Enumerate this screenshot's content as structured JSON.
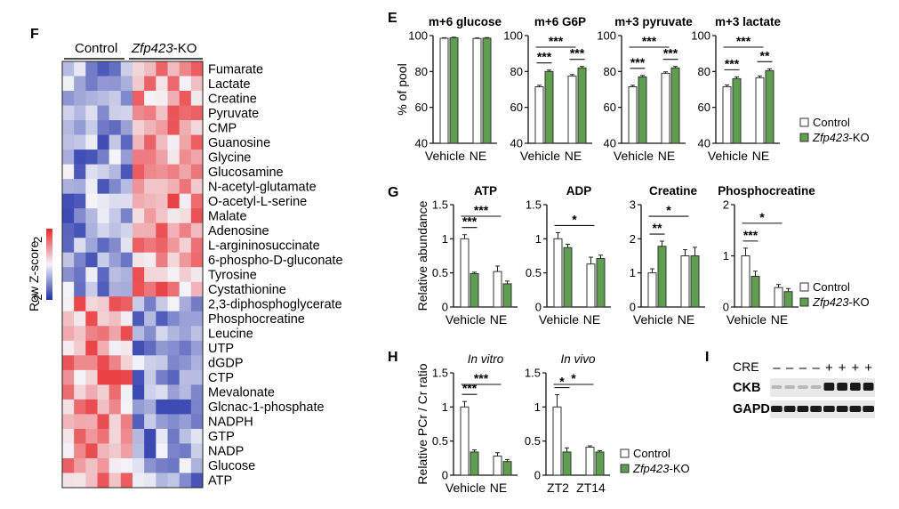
{
  "figure": {
    "panel_letters": {
      "F": "F",
      "E": "E",
      "G": "G",
      "H": "H",
      "I": "I"
    },
    "heatmap": {
      "group_labels": {
        "control": "Control",
        "ko_italic": "Zfp423",
        "ko_suffix": "-KO"
      },
      "colorbar": {
        "label": "Row Z-score",
        "max_label": "2",
        "min_label": "-2"
      },
      "rows": [
        "Fumarate",
        "Lactate",
        "Creatine",
        "Pyruvate",
        "CMP",
        "Guanosine",
        "Glycine",
        "Glucosamine",
        "N-acetyl-glutamate",
        "O-acetyl-L-serine",
        "Malate",
        "Adenosine",
        "L-argininosuccinate",
        "6-phospho-D-gluconate",
        "Tyrosine",
        "Cystathionine",
        "2,3-diphosphoglycerate",
        "Phosphocreatine",
        "Leucine",
        "UTP",
        "dGDP",
        "CTP",
        "Mevalonate",
        "Glcnac-1-phosphate",
        "NADPH",
        "GTP",
        "NADP",
        "Glucose",
        "ATP"
      ],
      "n_control": 6,
      "n_ko": 6
    },
    "legend": {
      "control": "Control",
      "ko_italic": "Zfp423",
      "ko_suffix": "-KO"
    },
    "colors": {
      "control": "#ffffff",
      "ko": "#5f9e4f",
      "bar_edge": "#333333",
      "heat_low": "#1f2fa8",
      "heat_mid": "#f4f4f8",
      "heat_high": "#e8262a"
    }
  },
  "chart_data": [
    {
      "id": "E1",
      "type": "bar",
      "title": "m+6 glucose",
      "ylabel": "% of pool",
      "ylim": [
        40,
        100
      ],
      "yticks": [
        "40",
        "60",
        "80",
        "100"
      ],
      "categories": [
        "Vehicle",
        "NE"
      ],
      "series": [
        {
          "name": "Control",
          "values": [
            98.5,
            98.4
          ]
        },
        {
          "name": "Zfp423-KO",
          "values": [
            98.8,
            98.6
          ]
        }
      ],
      "errors": [
        [
          0.3,
          0.3
        ],
        [
          0.3,
          0.3
        ]
      ],
      "significance": []
    },
    {
      "id": "E2",
      "type": "bar",
      "title": "m+6 G6P",
      "ylim": [
        40,
        100
      ],
      "yticks": [
        "40",
        "60",
        "80",
        "100"
      ],
      "categories": [
        "Vehicle",
        "NE"
      ],
      "series": [
        {
          "name": "Control",
          "values": [
            71.5,
            77.5
          ]
        },
        {
          "name": "Zfp423-KO",
          "values": [
            80,
            82
          ]
        }
      ],
      "errors": [
        [
          0.8,
          0.8
        ],
        [
          0.8,
          0.8
        ]
      ],
      "significance": [
        {
          "label": "***",
          "a": "c0",
          "b": "k0"
        },
        {
          "label": "***",
          "a": "c1",
          "b": "k1"
        },
        {
          "label": "***",
          "a": "c0",
          "b": "c1"
        }
      ]
    },
    {
      "id": "E3",
      "type": "bar",
      "title": "m+3 pyruvate",
      "ylim": [
        40,
        100
      ],
      "yticks": [
        "40",
        "60",
        "80",
        "100"
      ],
      "categories": [
        "Vehicle",
        "NE"
      ],
      "series": [
        {
          "name": "Control",
          "values": [
            71.5,
            79
          ]
        },
        {
          "name": "Zfp423-KO",
          "values": [
            77,
            82
          ]
        }
      ],
      "errors": [
        [
          0.8,
          0.8
        ],
        [
          0.8,
          0.8
        ]
      ],
      "significance": [
        {
          "label": "***",
          "a": "c0",
          "b": "k0"
        },
        {
          "label": "***",
          "a": "c1",
          "b": "k1"
        },
        {
          "label": "***",
          "a": "c0",
          "b": "c1"
        }
      ]
    },
    {
      "id": "E4",
      "type": "bar",
      "title": "m+3 lactate",
      "ylim": [
        40,
        100
      ],
      "yticks": [
        "40",
        "60",
        "80",
        "100"
      ],
      "categories": [
        "Vehicle",
        "NE"
      ],
      "series": [
        {
          "name": "Control",
          "values": [
            71.5,
            76.5
          ]
        },
        {
          "name": "Zfp423-KO",
          "values": [
            76,
            80.5
          ]
        }
      ],
      "errors": [
        [
          1,
          1
        ],
        [
          1,
          1
        ]
      ],
      "significance": [
        {
          "label": "***",
          "a": "c0",
          "b": "k0"
        },
        {
          "label": "**",
          "a": "c1",
          "b": "k1"
        },
        {
          "label": "***",
          "a": "c0",
          "b": "c1"
        }
      ]
    },
    {
      "id": "G1",
      "type": "bar",
      "title": "ATP",
      "ylabel": "Relative abundance",
      "ylim": [
        0,
        1.5
      ],
      "yticks": [
        "0",
        "0.5",
        "1",
        "1.5"
      ],
      "categories": [
        "Vehicle",
        "NE"
      ],
      "series": [
        {
          "name": "Control",
          "values": [
            1.0,
            0.52
          ]
        },
        {
          "name": "Zfp423-KO",
          "values": [
            0.49,
            0.34
          ]
        }
      ],
      "errors": [
        [
          0.06,
          0.08
        ],
        [
          0.02,
          0.04
        ]
      ],
      "significance": [
        {
          "label": "***",
          "a": "c0",
          "b": "k0"
        },
        {
          "label": "***",
          "a": "c0",
          "b": "c1"
        }
      ]
    },
    {
      "id": "G2",
      "type": "bar",
      "title": "ADP",
      "ylim": [
        0,
        1.5
      ],
      "yticks": [
        "0",
        "0.5",
        "1",
        "1.5"
      ],
      "categories": [
        "Vehicle",
        "NE"
      ],
      "series": [
        {
          "name": "Control",
          "values": [
            1.0,
            0.63
          ]
        },
        {
          "name": "Zfp423-KO",
          "values": [
            0.87,
            0.71
          ]
        }
      ],
      "errors": [
        [
          0.09,
          0.1
        ],
        [
          0.05,
          0.05
        ]
      ],
      "significance": [
        {
          "label": "*",
          "a": "c0",
          "b": "c1"
        }
      ]
    },
    {
      "id": "G3",
      "type": "bar",
      "title": "Creatine",
      "ylim": [
        0,
        3
      ],
      "yticks": [
        "0",
        "1",
        "2",
        "3"
      ],
      "categories": [
        "Vehicle",
        "NE"
      ],
      "series": [
        {
          "name": "Control",
          "values": [
            1.0,
            1.5
          ]
        },
        {
          "name": "Zfp423-KO",
          "values": [
            1.78,
            1.5
          ]
        }
      ],
      "errors": [
        [
          0.12,
          0.18
        ],
        [
          0.15,
          0.25
        ]
      ],
      "significance": [
        {
          "label": "**",
          "a": "c0",
          "b": "k0"
        },
        {
          "label": "*",
          "a": "c0",
          "b": "c1"
        }
      ]
    },
    {
      "id": "G4",
      "type": "bar",
      "title": "Phosphocreatine",
      "ylim": [
        0,
        2
      ],
      "yticks": [
        "0",
        "1",
        "2"
      ],
      "categories": [
        "Vehicle",
        "NE"
      ],
      "series": [
        {
          "name": "Control",
          "values": [
            1.0,
            0.38
          ]
        },
        {
          "name": "Zfp423-KO",
          "values": [
            0.6,
            0.3
          ]
        }
      ],
      "errors": [
        [
          0.15,
          0.06
        ],
        [
          0.1,
          0.06
        ]
      ],
      "significance": [
        {
          "label": "***",
          "a": "c0",
          "b": "k0"
        },
        {
          "label": "*",
          "a": "c0",
          "b": "c1"
        }
      ]
    },
    {
      "id": "H1",
      "type": "bar",
      "title": "In vitro",
      "ylabel": "Relative PCr / Cr ratio",
      "ylim": [
        0,
        1.5
      ],
      "yticks": [
        "0",
        "0.5",
        "1",
        "1.5"
      ],
      "categories": [
        "Vehicle",
        "NE"
      ],
      "series": [
        {
          "name": "Control",
          "values": [
            1.0,
            0.28
          ]
        },
        {
          "name": "Zfp423-KO",
          "values": [
            0.34,
            0.2
          ]
        }
      ],
      "errors": [
        [
          0.08,
          0.05
        ],
        [
          0.03,
          0.03
        ]
      ],
      "significance": [
        {
          "label": "***",
          "a": "c0",
          "b": "k0"
        },
        {
          "label": "***",
          "a": "c0",
          "b": "c1"
        }
      ]
    },
    {
      "id": "H2",
      "type": "bar",
      "title": "In vivo",
      "ylim": [
        0,
        1.5
      ],
      "yticks": [
        "0",
        "0.5",
        "1",
        "1.5"
      ],
      "categories": [
        "ZT2",
        "ZT14"
      ],
      "series": [
        {
          "name": "Control",
          "values": [
            1.0,
            0.41
          ]
        },
        {
          "name": "Zfp423-KO",
          "values": [
            0.34,
            0.34
          ]
        }
      ],
      "errors": [
        [
          0.18,
          0.02
        ],
        [
          0.06,
          0.02
        ]
      ],
      "significance": [
        {
          "label": "*",
          "a": "c0",
          "b": "k0"
        },
        {
          "label": "*",
          "a": "c0",
          "b": "c1"
        }
      ]
    },
    {
      "id": "I",
      "type": "table",
      "row_header": "CRE",
      "cre": [
        "–",
        "–",
        "–",
        "–",
        "+",
        "+",
        "+",
        "+"
      ],
      "proteins": [
        "CKB",
        "GAPDH"
      ]
    }
  ]
}
